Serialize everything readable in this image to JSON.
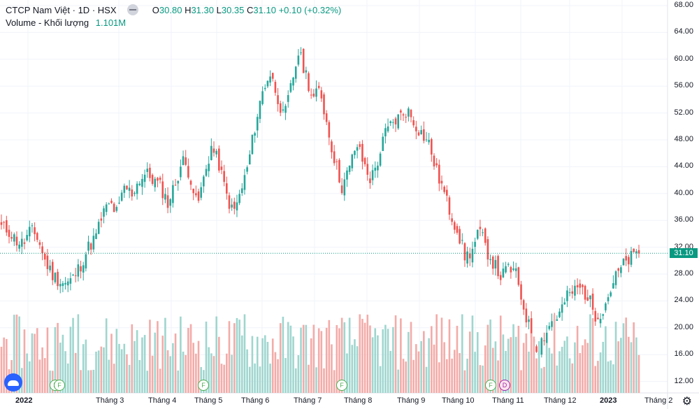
{
  "legend": {
    "symbol": "CTCP Nam Việt",
    "interval": "1D",
    "exchange": "HSX",
    "open_label": "O",
    "open": "30.80",
    "high_label": "H",
    "high": "31.30",
    "low_label": "L",
    "low": "30.35",
    "close_label": "C",
    "close": "31.10",
    "change": "+0.10 (+0.32%)",
    "volume_label": "Volume - Khối lượng",
    "volume_value": "1.101M"
  },
  "price_axis": [
    "68.00",
    "64.00",
    "60.00",
    "56.00",
    "52.00",
    "48.00",
    "44.00",
    "40.00",
    "36.00",
    "32.00",
    "28.00",
    "24.00",
    "20.00",
    "16.00",
    "12.00"
  ],
  "last_price_label": "31.10",
  "time_axis": [
    {
      "label": "2022",
      "year": true
    },
    {
      "label": "Tháng 3"
    },
    {
      "label": "Tháng 4"
    },
    {
      "label": "Tháng 5"
    },
    {
      "label": "Tháng 6"
    },
    {
      "label": "Tháng 7"
    },
    {
      "label": "Tháng 8"
    },
    {
      "label": "Tháng 9"
    },
    {
      "label": "Tháng 10"
    },
    {
      "label": "Tháng 11"
    },
    {
      "label": "Tháng 12"
    },
    {
      "label": "2023",
      "year": true
    },
    {
      "label": "Tháng 2"
    }
  ],
  "events": [
    {
      "kind": "F",
      "label": "F"
    },
    {
      "kind": "F",
      "label": "F"
    },
    {
      "kind": "F",
      "label": "F"
    },
    {
      "kind": "F",
      "label": "F"
    },
    {
      "kind": "F",
      "label": "F"
    },
    {
      "kind": "D",
      "label": "D"
    }
  ],
  "colors": {
    "up": "#26a69a",
    "down": "#ef5350",
    "up_vol": "#9fd6cf",
    "down_vol": "#f3aba8",
    "last_line": "#089981"
  },
  "chart_data": {
    "type": "candlestick",
    "price_range": [
      12,
      68
    ],
    "close_path": [
      [
        "2022-01-31",
        35.0
      ],
      [
        "2022-02-01",
        34.5
      ],
      [
        "2022-02-04",
        33.0
      ],
      [
        "2022-02-08",
        32.5
      ],
      [
        "2022-02-10",
        34.5
      ],
      [
        "2022-02-14",
        33.5
      ],
      [
        "2022-02-16",
        30.0
      ],
      [
        "2022-02-18",
        28.0
      ],
      [
        "2022-02-22",
        27.0
      ],
      [
        "2022-02-24",
        26.5
      ],
      [
        "2022-02-28",
        27.5
      ],
      [
        "2022-03-02",
        29.5
      ],
      [
        "2022-03-07",
        32.0
      ],
      [
        "2022-03-10",
        33.5
      ],
      [
        "2022-03-15",
        37.0
      ],
      [
        "2022-03-18",
        38.5
      ],
      [
        "2022-03-23",
        37.0
      ],
      [
        "2022-03-28",
        41.0
      ],
      [
        "2022-03-31",
        40.0
      ],
      [
        "2022-04-05",
        42.0
      ],
      [
        "2022-04-08",
        43.0
      ],
      [
        "2022-04-13",
        42.0
      ],
      [
        "2022-04-18",
        41.0
      ],
      [
        "2022-04-21",
        38.5
      ],
      [
        "2022-04-25",
        41.5
      ],
      [
        "2022-04-28",
        45.0
      ],
      [
        "2022-05-04",
        43.0
      ],
      [
        "2022-05-09",
        38.0
      ],
      [
        "2022-05-12",
        42.5
      ],
      [
        "2022-05-16",
        47.0
      ],
      [
        "2022-05-19",
        44.5
      ],
      [
        "2022-05-23",
        40.0
      ],
      [
        "2022-05-26",
        37.0
      ],
      [
        "2022-05-31",
        40.0
      ],
      [
        "2022-06-03",
        44.0
      ],
      [
        "2022-06-07",
        50.0
      ],
      [
        "2022-06-10",
        55.0
      ],
      [
        "2022-06-14",
        58.0
      ],
      [
        "2022-06-17",
        55.0
      ],
      [
        "2022-06-21",
        51.0
      ],
      [
        "2022-06-24",
        56.0
      ],
      [
        "2022-06-29",
        61.0
      ],
      [
        "2022-07-04",
        58.0
      ],
      [
        "2022-07-07",
        54.0
      ],
      [
        "2022-07-12",
        55.5
      ],
      [
        "2022-07-15",
        50.0
      ],
      [
        "2022-07-19",
        45.0
      ],
      [
        "2022-07-22",
        41.0
      ],
      [
        "2022-07-27",
        43.5
      ],
      [
        "2022-08-01",
        47.5
      ],
      [
        "2022-08-04",
        44.5
      ],
      [
        "2022-08-09",
        42.0
      ],
      [
        "2022-08-12",
        45.0
      ],
      [
        "2022-08-17",
        49.0
      ],
      [
        "2022-08-22",
        50.5
      ],
      [
        "2022-08-26",
        51.5
      ],
      [
        "2022-09-01",
        52.5
      ],
      [
        "2022-09-06",
        50.5
      ],
      [
        "2022-09-09",
        49.0
      ],
      [
        "2022-09-14",
        47.5
      ],
      [
        "2022-09-19",
        43.5
      ],
      [
        "2022-09-23",
        40.5
      ],
      [
        "2022-09-28",
        37.0
      ],
      [
        "2022-10-03",
        34.5
      ],
      [
        "2022-10-06",
        30.5
      ],
      [
        "2022-10-11",
        31.5
      ],
      [
        "2022-10-14",
        34.5
      ],
      [
        "2022-10-19",
        31.5
      ],
      [
        "2022-10-24",
        29.5
      ],
      [
        "2022-10-27",
        27.5
      ],
      [
        "2022-11-01",
        29.0
      ],
      [
        "2022-11-04",
        28.0
      ],
      [
        "2022-11-09",
        23.5
      ],
      [
        "2022-11-14",
        19.5
      ],
      [
        "2022-11-17",
        17.0
      ],
      [
        "2022-11-22",
        19.0
      ],
      [
        "2022-11-25",
        21.0
      ],
      [
        "2022-11-30",
        22.0
      ],
      [
        "2022-12-05",
        24.5
      ],
      [
        "2022-12-08",
        25.5
      ],
      [
        "2022-12-13",
        26.0
      ],
      [
        "2022-12-16",
        24.5
      ],
      [
        "2022-12-21",
        22.0
      ],
      [
        "2022-12-26",
        22.5
      ],
      [
        "2022-12-29",
        25.5
      ],
      [
        "2023-01-04",
        28.0
      ],
      [
        "2023-01-09",
        29.5
      ],
      [
        "2023-01-13",
        30.5
      ],
      [
        "2023-01-18",
        31.1
      ]
    ]
  }
}
